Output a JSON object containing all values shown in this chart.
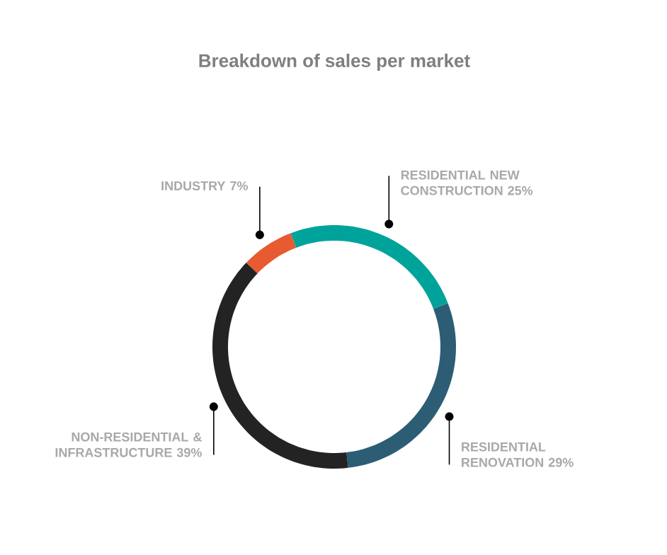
{
  "chart_data": {
    "type": "donut",
    "title": "Breakdown of sales per market",
    "categories": [
      "RESIDENTIAL NEW CONSTRUCTION",
      "RESIDENTIAL RENOVATION",
      "NON-RESIDENTIAL & INFRASTRUCTURE",
      "INDUSTRY"
    ],
    "values": [
      25,
      29,
      39,
      7
    ],
    "value_labels": [
      "25%",
      "29%",
      "39%",
      "7%"
    ],
    "colors": [
      "#00a39a",
      "#2c5d75",
      "#232323",
      "#e85a30"
    ]
  }
}
